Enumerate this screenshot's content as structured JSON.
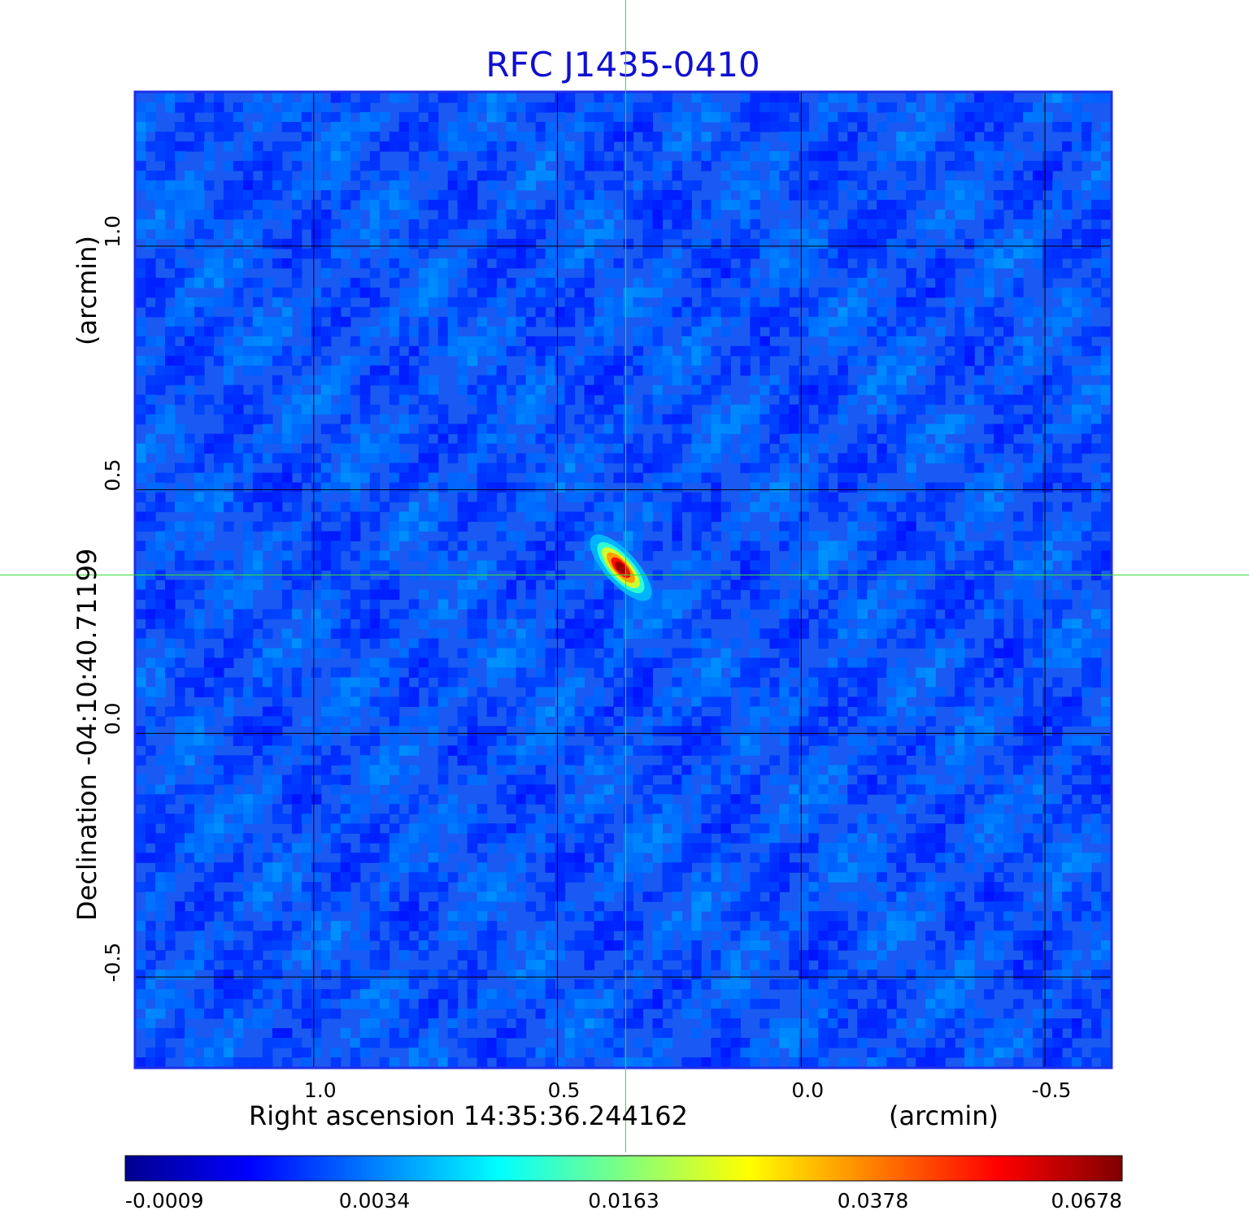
{
  "chart_data": {
    "type": "heatmap",
    "title": "RFC J1435-0410",
    "xlabel": "Right ascension  14:35:36.244162",
    "xunit": "(arcmin)",
    "ylabel": "Declination  -04:10:40.71199",
    "yunit": "(arcmin)",
    "x_range": [
      1.365,
      -0.635
    ],
    "y_range": [
      -0.685,
      1.315
    ],
    "x_ticks": [
      {
        "value": 1.0,
        "label": "1.0"
      },
      {
        "value": 0.5,
        "label": "0.5"
      },
      {
        "value": 0.0,
        "label": "0.0"
      },
      {
        "value": -0.5,
        "label": "-0.5"
      }
    ],
    "y_ticks": [
      {
        "value": 1.0,
        "label": "1.0"
      },
      {
        "value": 0.5,
        "label": "0.5"
      },
      {
        "value": 0.0,
        "label": "0.0"
      },
      {
        "value": -0.5,
        "label": "-0.5"
      }
    ],
    "grid": true,
    "crosshair": {
      "x": 0.36,
      "y": 0.325,
      "color": "#33dd33"
    },
    "source_peak": {
      "x": 0.37,
      "y": 0.34,
      "value": 0.0678
    },
    "colormap": "jet",
    "colorbar": {
      "placement": "bottom",
      "ticks": [
        "-0.0009",
        "0.0034",
        "0.0163",
        "0.0378",
        "0.0678"
      ],
      "min": -0.0009,
      "max": 0.0678
    }
  }
}
